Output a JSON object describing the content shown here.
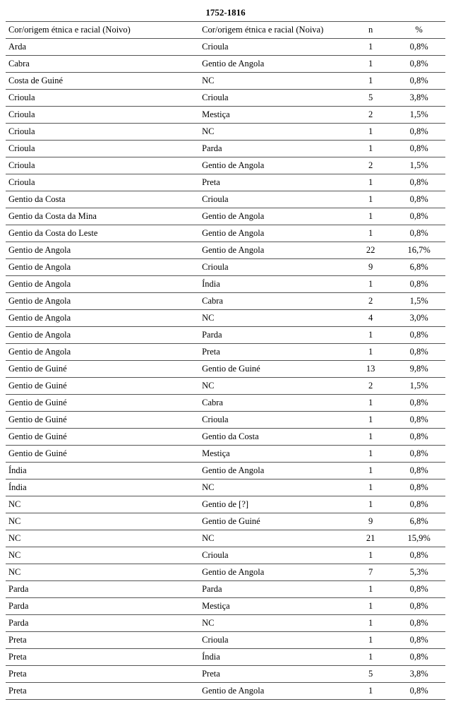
{
  "title": "1752-1816",
  "columns": {
    "noivo": "Cor/origem étnica e racial (Noivo)",
    "noiva": "Cor/origem étnica e racial (Noiva)",
    "n": "n",
    "pct": "%"
  },
  "rows": [
    {
      "noivo": "Arda",
      "noiva": "Crioula",
      "n": "1",
      "pct": "0,8%"
    },
    {
      "noivo": "Cabra",
      "noiva": "Gentio de Angola",
      "n": "1",
      "pct": "0,8%"
    },
    {
      "noivo": "Costa de Guiné",
      "noiva": "NC",
      "n": "1",
      "pct": "0,8%"
    },
    {
      "noivo": "Crioula",
      "noiva": "Crioula",
      "n": "5",
      "pct": "3,8%"
    },
    {
      "noivo": " Crioula",
      "noiva": "Mestiça",
      "n": "2",
      "pct": "1,5%"
    },
    {
      "noivo": "Crioula",
      "noiva": "NC",
      "n": "1",
      "pct": "0,8%"
    },
    {
      "noivo": "Crioula",
      "noiva": "Parda",
      "n": "1",
      "pct": "0,8%"
    },
    {
      "noivo": "Crioula",
      "noiva": "Gentio de Angola",
      "n": "2",
      "pct": "1,5%"
    },
    {
      "noivo": "Crioula",
      "noiva": "Preta",
      "n": "1",
      "pct": "0,8%"
    },
    {
      "noivo": "Gentio da Costa",
      "noiva": "Crioula",
      "n": "1",
      "pct": "0,8%"
    },
    {
      "noivo": "Gentio da Costa da Mina",
      "noiva": "Gentio de Angola",
      "n": "1",
      "pct": "0,8%"
    },
    {
      "noivo": "Gentio da Costa do Leste",
      "noiva": "Gentio de Angola",
      "n": "1",
      "pct": "0,8%"
    },
    {
      "noivo": "Gentio de Angola",
      "noiva": "Gentio de Angola",
      "n": "22",
      "pct": "16,7%"
    },
    {
      "noivo": "Gentio de Angola",
      "noiva": "Crioula",
      "n": "9",
      "pct": "6,8%"
    },
    {
      "noivo": "Gentio de Angola",
      "noiva": "Índia",
      "n": "1",
      "pct": "0,8%"
    },
    {
      "noivo": "Gentio de Angola",
      "noiva": "Cabra",
      "n": "2",
      "pct": "1,5%"
    },
    {
      "noivo": "Gentio de Angola",
      "noiva": "NC",
      "n": "4",
      "pct": "3,0%"
    },
    {
      "noivo": "Gentio de Angola",
      "noiva": "Parda",
      "n": "1",
      "pct": "0,8%"
    },
    {
      "noivo": "Gentio de Angola",
      "noiva": "Preta",
      "n": "1",
      "pct": "0,8%"
    },
    {
      "noivo": "Gentio de Guiné",
      "noiva": "Gentio de Guiné",
      "n": "13",
      "pct": "9,8%"
    },
    {
      "noivo": "Gentio de Guiné",
      "noiva": "NC",
      "n": "2",
      "pct": "1,5%"
    },
    {
      "noivo": "Gentio de Guiné",
      "noiva": "Cabra",
      "n": "1",
      "pct": "0,8%"
    },
    {
      "noivo": "Gentio de Guiné",
      "noiva": "Crioula",
      "n": "1",
      "pct": "0,8%"
    },
    {
      "noivo": "Gentio de Guiné",
      "noiva": "Gentio da Costa",
      "n": "1",
      "pct": "0,8%"
    },
    {
      "noivo": "Gentio de Guiné",
      "noiva": "Mestiça",
      "n": "1",
      "pct": "0,8%"
    },
    {
      "noivo": "Índia",
      "noiva": "Gentio de Angola",
      "n": "1",
      "pct": "0,8%"
    },
    {
      "noivo": "Índia",
      "noiva": "NC",
      "n": "1",
      "pct": "0,8%"
    },
    {
      "noivo": "NC",
      "noiva": "Gentio de [?]",
      "n": "1",
      "pct": "0,8%"
    },
    {
      "noivo": "NC",
      "noiva": "Gentio de Guiné",
      "n": "9",
      "pct": "6,8%"
    },
    {
      "noivo": "NC",
      "noiva": "NC",
      "n": "21",
      "pct": "15,9%"
    },
    {
      "noivo": "NC",
      "noiva": "Crioula",
      "n": "1",
      "pct": "0,8%"
    },
    {
      "noivo": "NC",
      "noiva": "Gentio de Angola",
      "n": "7",
      "pct": "5,3%"
    },
    {
      "noivo": "Parda",
      "noiva": "Parda",
      "n": "1",
      "pct": "0,8%"
    },
    {
      "noivo": "Parda",
      "noiva": "Mestiça",
      "n": "1",
      "pct": "0,8%"
    },
    {
      "noivo": "Parda",
      "noiva": "NC",
      "n": "1",
      "pct": "0,8%"
    },
    {
      "noivo": "Preta",
      "noiva": "Crioula",
      "n": "1",
      "pct": "0,8%"
    },
    {
      "noivo": "Preta",
      "noiva": "Índia",
      "n": "1",
      "pct": "0,8%"
    },
    {
      "noivo": "Preta",
      "noiva": "Preta",
      "n": "5",
      "pct": "3,8%"
    },
    {
      "noivo": "Preta",
      "noiva": "Gentio de Angola",
      "n": "1",
      "pct": "0,8%"
    }
  ]
}
